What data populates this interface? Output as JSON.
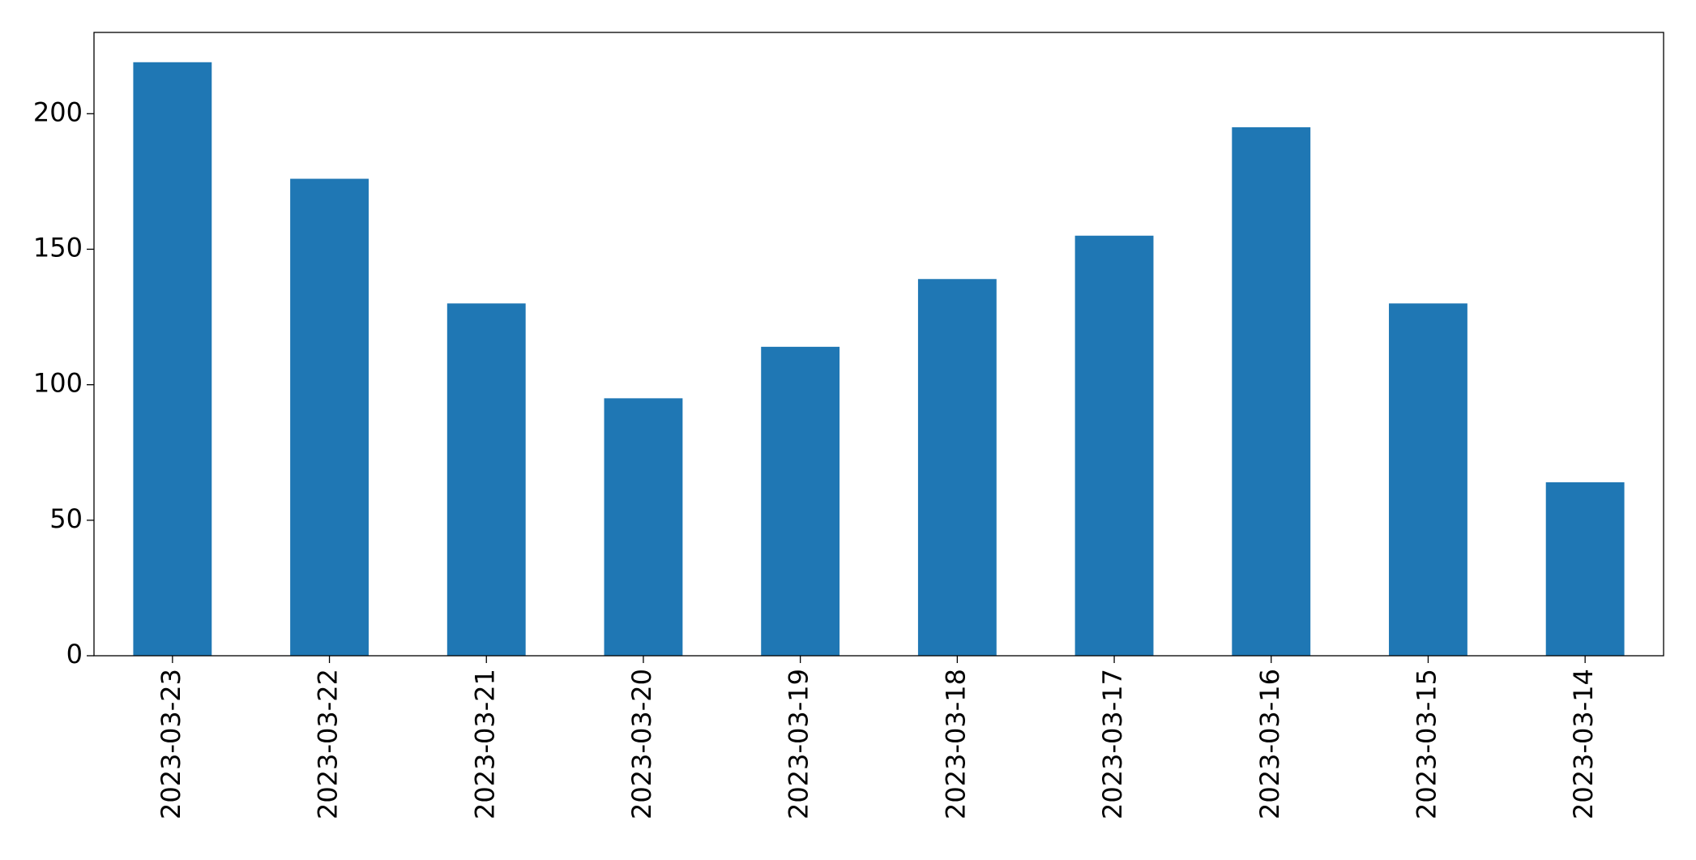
{
  "chart_data": {
    "type": "bar",
    "categories": [
      "2023-03-23",
      "2023-03-22",
      "2023-03-21",
      "2023-03-20",
      "2023-03-19",
      "2023-03-18",
      "2023-03-17",
      "2023-03-16",
      "2023-03-15",
      "2023-03-14"
    ],
    "values": [
      219,
      176,
      130,
      95,
      114,
      139,
      155,
      195,
      130,
      64
    ],
    "color": "#1f77b4",
    "ylim": [
      0,
      230
    ],
    "yticks": [
      0,
      50,
      100,
      150,
      200
    ],
    "grid": false
  }
}
